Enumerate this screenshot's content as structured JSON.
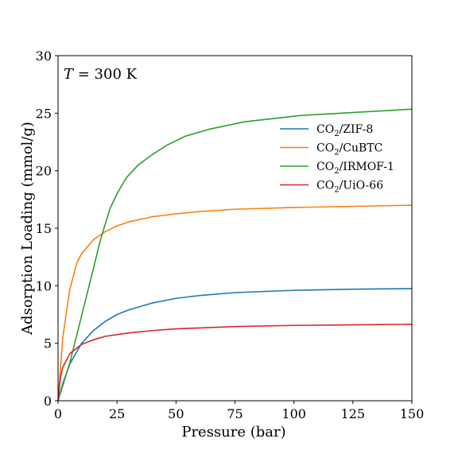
{
  "chart_data": {
    "type": "line",
    "title": "",
    "annotation": {
      "var": "T",
      "rest": " = 300 K"
    },
    "xlabel": "Pressure (bar)",
    "ylabel": "Adsorption Loading (mmol/g)",
    "xlim": [
      0,
      150
    ],
    "ylim": [
      0,
      30
    ],
    "xticks": [
      0,
      25,
      50,
      75,
      100,
      125,
      150
    ],
    "yticks": [
      0,
      5,
      10,
      15,
      20,
      25,
      30
    ],
    "grid": false,
    "legend_position": "upper-right",
    "series": [
      {
        "name": "CO2/ZIF-8",
        "legend_main": "CO",
        "legend_sub": "2",
        "legend_rest": "/ZIF-8",
        "color": "#1f77b4",
        "x": [
          0,
          2,
          5,
          10,
          15,
          20,
          25,
          30,
          40,
          50,
          60,
          75,
          100,
          125,
          150
        ],
        "y": [
          0,
          1.5,
          3.2,
          5.0,
          6.1,
          6.9,
          7.5,
          7.9,
          8.5,
          8.9,
          9.15,
          9.4,
          9.6,
          9.7,
          9.75
        ]
      },
      {
        "name": "CO2/CuBTC",
        "legend_main": "CO",
        "legend_sub": "2",
        "legend_rest": "/CuBTC",
        "color": "#ff7f0e",
        "x": [
          0,
          2,
          5,
          8,
          10,
          15,
          20,
          25,
          30,
          40,
          50,
          60,
          75,
          100,
          125,
          150
        ],
        "y": [
          0,
          5.5,
          9.7,
          12.0,
          12.8,
          14.0,
          14.7,
          15.2,
          15.55,
          16.0,
          16.25,
          16.45,
          16.65,
          16.8,
          16.9,
          17.0
        ]
      },
      {
        "name": "CO2/IRMOF-1",
        "legend_main": "CO",
        "legend_sub": "2",
        "legend_rest": "/IRMOF-1",
        "color": "#2ca02c",
        "x": [
          0,
          5,
          10,
          15,
          18,
          22,
          25,
          29,
          34,
          40,
          46,
          54,
          64,
          79,
          103,
          150
        ],
        "y": [
          0,
          3.3,
          7.4,
          11.5,
          14.0,
          16.7,
          18.0,
          19.4,
          20.5,
          21.4,
          22.2,
          23.0,
          23.6,
          24.25,
          24.8,
          25.35
        ]
      },
      {
        "name": "CO2/UiO-66",
        "legend_main": "CO",
        "legend_sub": "2",
        "legend_rest": "/UiO-66",
        "color": "#d62728",
        "x": [
          0,
          1,
          2,
          5,
          10,
          15,
          20,
          30,
          40,
          50,
          75,
          100,
          125,
          150
        ],
        "y": [
          0,
          2.0,
          2.9,
          4.1,
          4.9,
          5.3,
          5.6,
          5.9,
          6.1,
          6.25,
          6.45,
          6.55,
          6.6,
          6.65
        ]
      }
    ]
  }
}
